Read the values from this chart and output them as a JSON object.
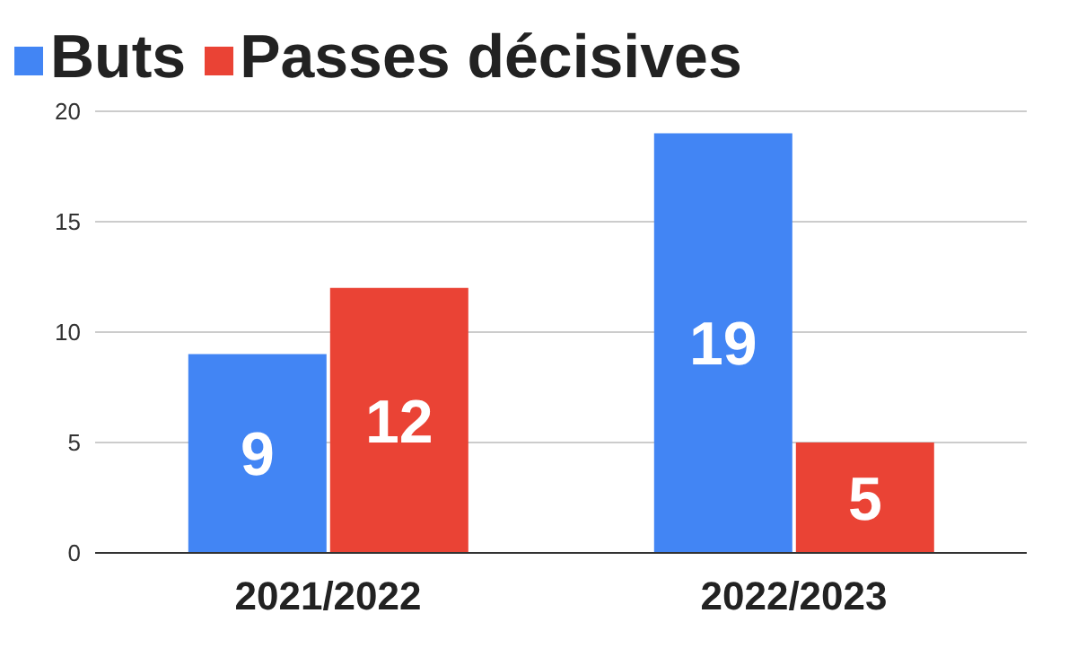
{
  "chart_data": {
    "type": "bar",
    "categories": [
      "2021/2022",
      "2022/2023"
    ],
    "series": [
      {
        "name": "Buts",
        "color": "#4285f4",
        "values": [
          9,
          19
        ]
      },
      {
        "name": "Passes décisives",
        "color": "#ea4335",
        "values": [
          12,
          5
        ]
      }
    ],
    "ylim": [
      0,
      20
    ],
    "yticks": [
      0,
      5,
      10,
      15,
      20
    ],
    "grid": "y",
    "legend": "top left",
    "data_labels": true
  }
}
